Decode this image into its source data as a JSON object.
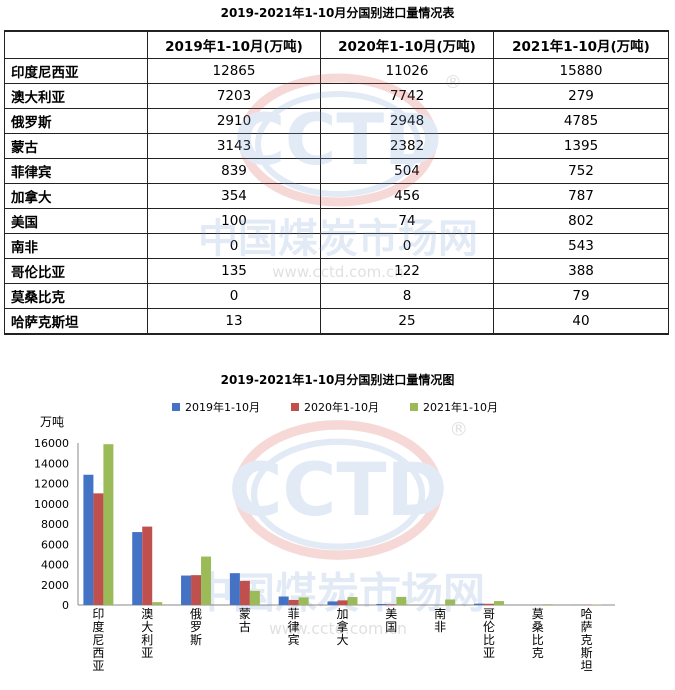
{
  "table": {
    "title": "2019-2021年1-10月分国别进口量情况表",
    "columns": [
      "",
      "2019年1-10月(万吨)",
      "2020年1-10月(万吨)",
      "2021年1-10月(万吨)"
    ],
    "rows": [
      {
        "country": "印度尼西亚",
        "v2019": "12865",
        "v2020": "11026",
        "v2021": "15880"
      },
      {
        "country": "澳大利亚",
        "v2019": "7203",
        "v2020": "7742",
        "v2021": "279"
      },
      {
        "country": "俄罗斯",
        "v2019": "2910",
        "v2020": "2948",
        "v2021": "4785"
      },
      {
        "country": "蒙古",
        "v2019": "3143",
        "v2020": "2382",
        "v2021": "1395"
      },
      {
        "country": "菲律宾",
        "v2019": "839",
        "v2020": "504",
        "v2021": "752"
      },
      {
        "country": "加拿大",
        "v2019": "354",
        "v2020": "456",
        "v2021": "787"
      },
      {
        "country": "美国",
        "v2019": "100",
        "v2020": "74",
        "v2021": "802"
      },
      {
        "country": "南非",
        "v2019": "0",
        "v2020": "0",
        "v2021": "543"
      },
      {
        "country": "哥伦比亚",
        "v2019": "135",
        "v2020": "122",
        "v2021": "388"
      },
      {
        "country": "莫桑比克",
        "v2019": "0",
        "v2020": "8",
        "v2021": "79"
      },
      {
        "country": "哈萨克斯坦",
        "v2019": "13",
        "v2020": "25",
        "v2021": "40"
      }
    ]
  },
  "watermark": {
    "logo_text": "CCTD",
    "registered": "®",
    "cn_text": "中国煤炭市场网",
    "url_text": "www.cctd.com.cn"
  },
  "colors": {
    "series_2019": "#4472C4",
    "series_2020": "#C0504D",
    "series_2021": "#9BBB59",
    "watermark_red": "#D9534F",
    "watermark_blue": "#7FA3D9"
  },
  "chart_data": {
    "type": "bar",
    "title": "2019-2021年1-10月分国别进口量情况图",
    "ylabel": "万吨",
    "xlabel": "",
    "ylim": [
      0,
      16000
    ],
    "yticks": [
      0,
      2000,
      4000,
      6000,
      8000,
      10000,
      12000,
      14000,
      16000
    ],
    "grid": false,
    "legend_position": "top",
    "categories": [
      "印度尼西亚",
      "澳大利亚",
      "俄罗斯",
      "蒙古",
      "菲律宾",
      "加拿大",
      "美国",
      "南非",
      "哥伦比亚",
      "莫桑比克",
      "哈萨克斯坦"
    ],
    "series": [
      {
        "name": "2019年1-10月",
        "values": [
          12865,
          7203,
          2910,
          3143,
          839,
          354,
          100,
          0,
          135,
          0,
          13
        ]
      },
      {
        "name": "2020年1-10月",
        "values": [
          11026,
          7742,
          2948,
          2382,
          504,
          456,
          74,
          0,
          122,
          8,
          25
        ]
      },
      {
        "name": "2021年1-10月",
        "values": [
          15880,
          279,
          4785,
          1395,
          752,
          787,
          802,
          543,
          388,
          79,
          40
        ]
      }
    ]
  }
}
